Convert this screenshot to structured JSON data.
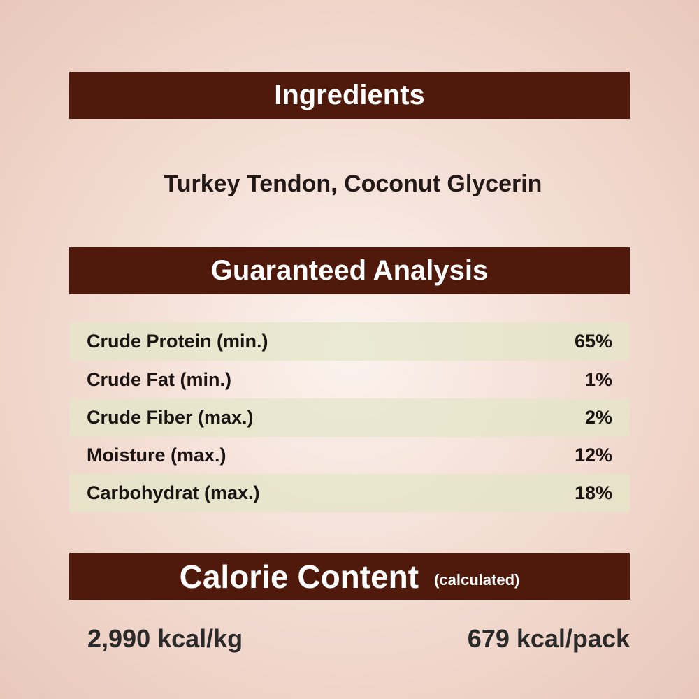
{
  "ingredients": {
    "title": "Ingredients",
    "text": "Turkey Tendon, Coconut Glycerin"
  },
  "analysis": {
    "title": "Guaranteed Analysis",
    "rows": [
      {
        "label": "Crude Protein (min.)",
        "value": "65%"
      },
      {
        "label": "Crude Fat (min.)",
        "value": "1%"
      },
      {
        "label": "Crude Fiber (max.)",
        "value": "2%"
      },
      {
        "label": "Moisture (max.)",
        "value": "12%"
      },
      {
        "label": "Carbohydrat (max.)",
        "value": "18%"
      }
    ]
  },
  "calorie": {
    "title": "Calorie Content",
    "note": "(calculated)",
    "per_kg": "2,990 kcal/kg",
    "per_pack": "679 kcal/pack"
  },
  "colors": {
    "band": "#4f1a0c",
    "row_shade": "#e4e6c8"
  }
}
